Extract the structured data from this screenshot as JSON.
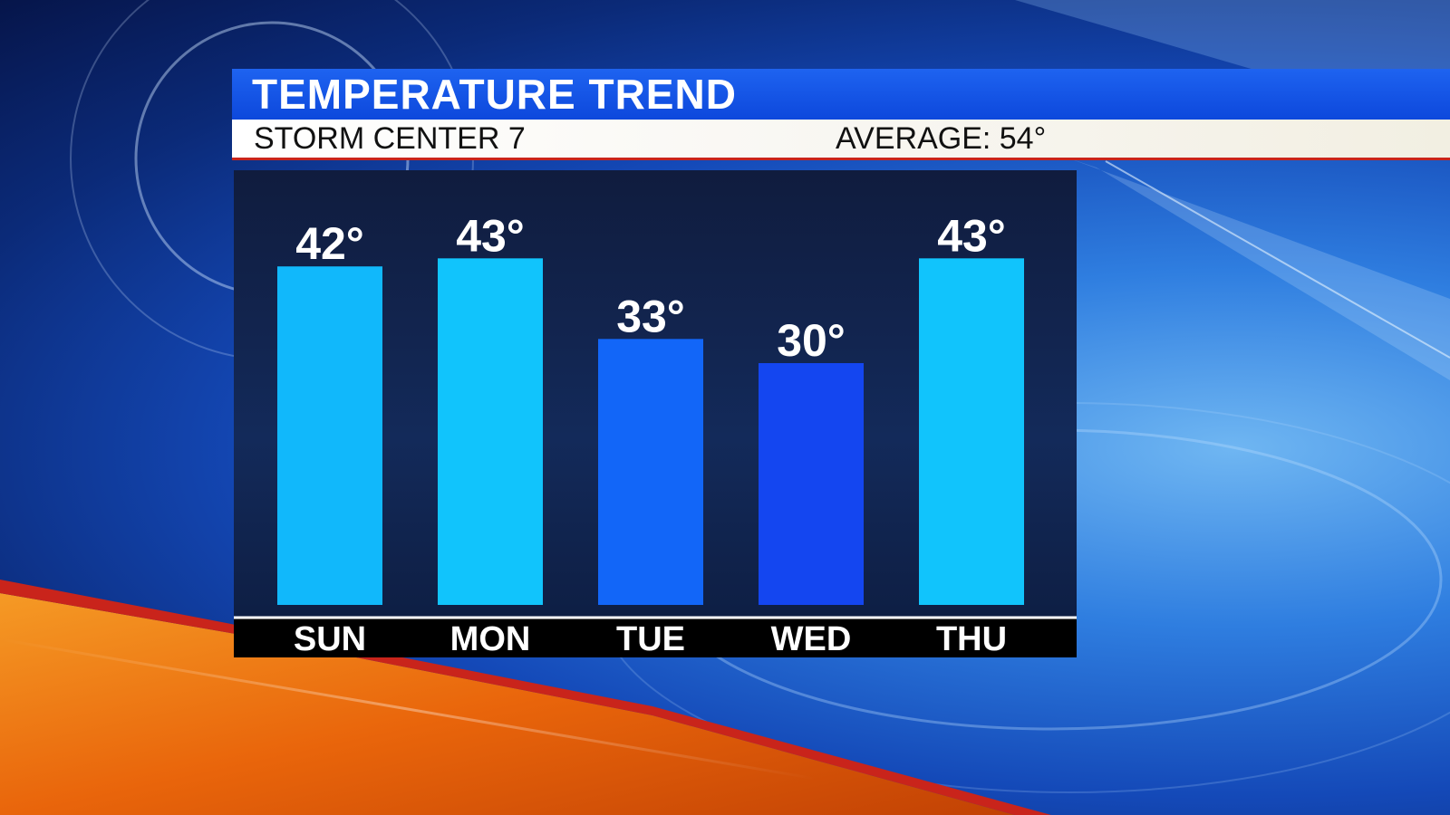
{
  "header": {
    "title": "TEMPERATURE TREND",
    "station": "STORM CENTER 7",
    "average_label": "AVERAGE:",
    "average_value": "54°"
  },
  "colors": {
    "bar_light": "#11c0fb",
    "bar_mid": "#1262f6",
    "bar_dark": "#1442ee",
    "title_bar": "#1655e6",
    "accent_red": "#c9241b",
    "accent_orange": "#f07a10"
  },
  "chart_data": {
    "type": "bar",
    "title": "TEMPERATURE TREND",
    "categories": [
      "SUN",
      "MON",
      "TUE",
      "WED",
      "THU"
    ],
    "values": [
      42,
      43,
      33,
      30,
      43
    ],
    "value_labels": [
      "42°",
      "43°",
      "33°",
      "30°",
      "43°"
    ],
    "bar_colors": [
      "#11b8fb",
      "#11c4fc",
      "#1266f8",
      "#1446f0",
      "#11c4fc"
    ],
    "grid": false,
    "legend": "none"
  }
}
